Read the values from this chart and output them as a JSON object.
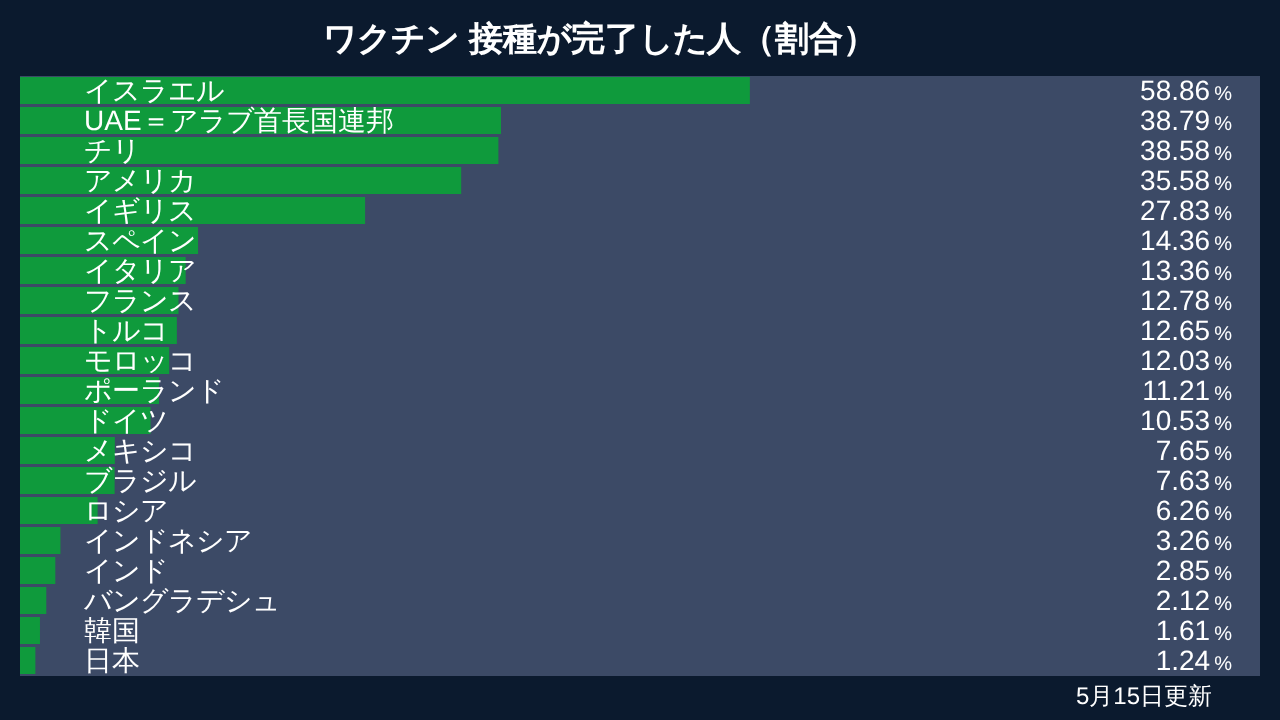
{
  "chart_data": {
    "type": "bar",
    "orientation": "horizontal",
    "title": "ワクチン 接種が完了した人（割合）",
    "categories": [
      "イスラエル",
      "UAE＝アラブ首長国連邦",
      "チリ",
      "アメリカ",
      "イギリス",
      "スペイン",
      "イタリア",
      "フランス",
      "トルコ",
      "モロッコ",
      "ポーランド",
      "ドイツ",
      "メキシコ",
      "ブラジル",
      "ロシア",
      "インドネシア",
      "インド",
      "バングラデシュ",
      "韓国",
      "日本"
    ],
    "values": [
      58.86,
      38.79,
      38.58,
      35.58,
      27.83,
      14.36,
      13.36,
      12.78,
      12.65,
      12.03,
      11.21,
      10.53,
      7.65,
      7.63,
      6.26,
      3.26,
      2.85,
      2.12,
      1.61,
      1.24
    ],
    "value_labels": [
      "58.86%",
      "38.79%",
      "38.58%",
      "35.58%",
      "27.83%",
      "14.36%",
      "13.36%",
      "12.78%",
      "12.65%",
      "12.03%",
      "11.21%",
      "10.53%",
      "7.65%",
      "7.63%",
      "6.26%",
      "3.26%",
      "2.85%",
      "2.12%",
      "1.61%",
      "1.24%"
    ],
    "color": "#0f9a3c",
    "xlim": [
      0,
      100
    ],
    "annotations": [
      "5月15日更新"
    ]
  }
}
